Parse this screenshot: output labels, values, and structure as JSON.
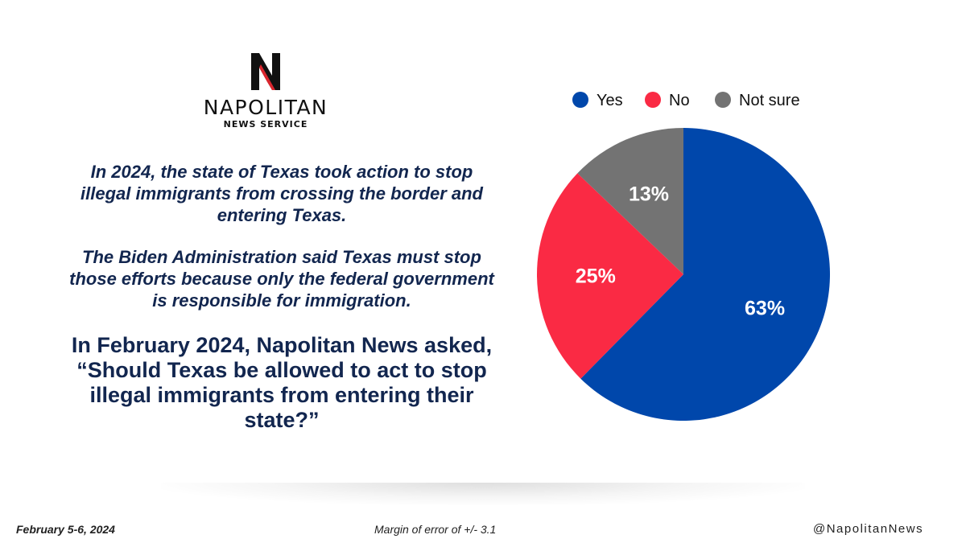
{
  "brand": {
    "name": "NAPOLITAN",
    "subtitle": "NEWS SERVICE",
    "colors": {
      "black": "#111111",
      "red": "#d9262e"
    }
  },
  "intro": {
    "paragraph1": "In 2024, the state of Texas took action to stop illegal immigrants from crossing the border and entering Texas.",
    "paragraph2": "The Biden Administration said Texas must stop those efforts because only the federal government is responsible for immigration."
  },
  "question": "In February 2024, Napolitan News asked, “Should Texas be allowed to act to stop illegal immigrants from entering their state?”",
  "footer": {
    "date": "February 5-6, 2024",
    "margin": "Margin of error of +/- 3.1",
    "handle": "@NapolitanNews"
  },
  "chart_data": {
    "type": "pie",
    "title": "",
    "legend_position": "top",
    "slices": [
      {
        "label": "Yes",
        "value": 63,
        "display": "63%",
        "color": "#0047ab"
      },
      {
        "label": "No",
        "value": 25,
        "display": "25%",
        "color": "#fa2a44"
      },
      {
        "label": "Not sure",
        "value": 13,
        "display": "13%",
        "color": "#737373"
      }
    ]
  }
}
